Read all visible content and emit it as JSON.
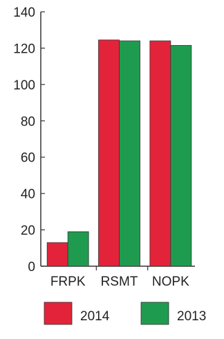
{
  "chart_data": {
    "type": "bar",
    "categories": [
      "FRPK",
      "RSMT",
      "NOPK"
    ],
    "series": [
      {
        "name": "2014",
        "values": [
          13,
          124.5,
          124
        ],
        "color": "#e3233a"
      },
      {
        "name": "2013",
        "values": [
          19,
          124,
          121.5
        ],
        "color": "#1f9b50"
      }
    ],
    "ylim": [
      0,
      140
    ],
    "yticks": [
      0,
      20,
      40,
      60,
      80,
      100,
      120,
      140
    ],
    "grid": false,
    "legend": "bottom",
    "axis_color": "#333333"
  }
}
